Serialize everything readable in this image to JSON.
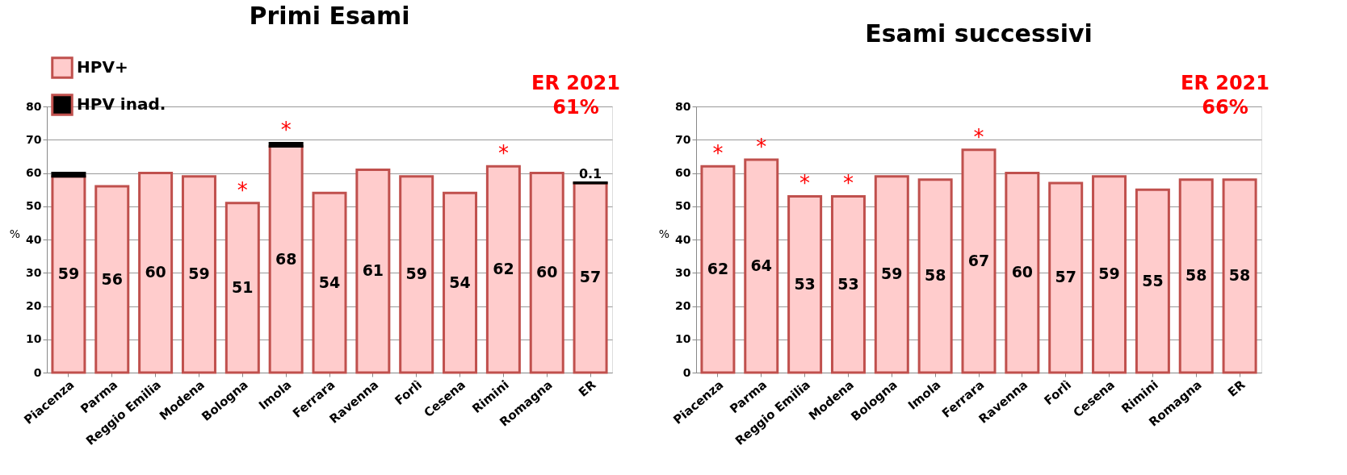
{
  "chart_data": [
    {
      "type": "bar",
      "title": "Primi Esami",
      "ylabel": "%",
      "stacked": true,
      "categories": [
        "Piacenza",
        "Parma",
        "Reggio Emilia",
        "Modena",
        "Bologna",
        "Imola",
        "Ferrara",
        "Ravenna",
        "Forlì",
        "Cesena",
        "Rimini",
        "Romagna",
        "ER"
      ],
      "series": [
        {
          "name": "HPV+",
          "color": "#ffcccc",
          "values": [
            59,
            56,
            60,
            59,
            51,
            68,
            54,
            61,
            59,
            54,
            62,
            60,
            57
          ],
          "value_labels": [
            "59",
            "56",
            "60",
            "59",
            "51",
            "68",
            "54",
            "61",
            "59",
            "54",
            "62",
            "60",
            "57"
          ]
        },
        {
          "name": "HPV inad.",
          "color": "#000000",
          "values": [
            1,
            null,
            null,
            null,
            null,
            1,
            null,
            null,
            null,
            null,
            null,
            null,
            0.1
          ],
          "value_labels": [
            null,
            null,
            null,
            null,
            null,
            null,
            null,
            null,
            null,
            null,
            null,
            null,
            "0.1"
          ]
        }
      ],
      "ylim": [
        0,
        80
      ],
      "yticks": [
        0,
        10,
        20,
        30,
        40,
        50,
        60,
        70,
        80
      ],
      "grid": "y",
      "legend": "top left",
      "annotations": [
        "ER 2021\n61%",
        {
          "text": "*",
          "x": "Bologna",
          "y": 51
        },
        {
          "text": "*",
          "x": "Imola",
          "y": 69
        },
        {
          "text": "*",
          "x": "Rimini",
          "y": 62
        }
      ]
    },
    {
      "type": "bar",
      "title": "Esami successivi",
      "ylabel": "%",
      "stacked": true,
      "categories": [
        "Piacenza",
        "Parma",
        "Reggio Emilia",
        "Modena",
        "Bologna",
        "Imola",
        "Ferrara",
        "Ravenna",
        "Forlì",
        "Cesena",
        "Rimini",
        "Romagna",
        "ER"
      ],
      "series": [
        {
          "color": "#ffcccc",
          "values": [
            62,
            64,
            53,
            53,
            59,
            58,
            67,
            60,
            57,
            59,
            55,
            58,
            58
          ],
          "value_labels": [
            "62",
            "64",
            "53",
            "53",
            "59",
            "58",
            "67",
            "60",
            "57",
            "59",
            "55",
            "58",
            "58"
          ]
        }
      ],
      "ylim": [
        0,
        80
      ],
      "yticks": [
        0,
        10,
        20,
        30,
        40,
        50,
        60,
        70,
        80
      ],
      "grid": "y",
      "legend": false,
      "annotations": [
        "ER 2021\n66%",
        {
          "text": "*",
          "x": "Piacenza",
          "y": 62
        },
        {
          "text": "*",
          "x": "Parma",
          "y": 64
        },
        {
          "text": "*",
          "x": "Reggio Emilia",
          "y": 53
        },
        {
          "text": "*",
          "x": "Modena",
          "y": 53
        },
        {
          "text": "*",
          "x": "Ferrara",
          "y": 67
        }
      ]
    }
  ]
}
